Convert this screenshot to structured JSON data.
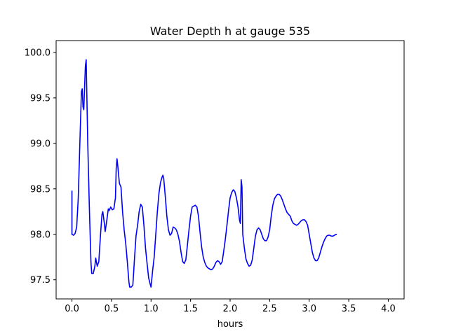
{
  "chart_data": {
    "type": "line",
    "title": "Water Depth h at gauge 535",
    "xlabel": "hours",
    "ylabel": "",
    "xlim": [
      -0.2,
      4.2
    ],
    "ylim": [
      97.29,
      100.13
    ],
    "xticks": [
      0.0,
      0.5,
      1.0,
      1.5,
      2.0,
      2.5,
      3.0,
      3.5,
      4.0
    ],
    "xtick_labels": [
      "0.0",
      "0.5",
      "1.0",
      "1.5",
      "2.0",
      "2.5",
      "3.0",
      "3.5",
      "4.0"
    ],
    "yticks": [
      97.5,
      98.0,
      98.5,
      99.0,
      99.5,
      100.0
    ],
    "ytick_labels": [
      "97.5",
      "98.0",
      "98.5",
      "99.0",
      "99.5",
      "100.0"
    ],
    "grid": false,
    "series": [
      {
        "color": "#0000ff",
        "points": [
          [
            0.0,
            98.48
          ],
          [
            0.0,
            98.0
          ],
          [
            0.02,
            97.99
          ],
          [
            0.04,
            98.01
          ],
          [
            0.06,
            98.08
          ],
          [
            0.08,
            98.4
          ],
          [
            0.1,
            99.0
          ],
          [
            0.12,
            99.57
          ],
          [
            0.13,
            99.6
          ],
          [
            0.14,
            99.4
          ],
          [
            0.15,
            99.37
          ],
          [
            0.16,
            99.62
          ],
          [
            0.17,
            99.85
          ],
          [
            0.18,
            99.92
          ],
          [
            0.2,
            99.0
          ],
          [
            0.22,
            98.3
          ],
          [
            0.24,
            97.7
          ],
          [
            0.25,
            97.57
          ],
          [
            0.27,
            97.57
          ],
          [
            0.29,
            97.65
          ],
          [
            0.3,
            97.74
          ],
          [
            0.32,
            97.65
          ],
          [
            0.34,
            97.7
          ],
          [
            0.36,
            97.98
          ],
          [
            0.38,
            98.22
          ],
          [
            0.39,
            98.25
          ],
          [
            0.41,
            98.12
          ],
          [
            0.42,
            98.03
          ],
          [
            0.44,
            98.15
          ],
          [
            0.46,
            98.28
          ],
          [
            0.47,
            98.26
          ],
          [
            0.49,
            98.3
          ],
          [
            0.51,
            98.27
          ],
          [
            0.53,
            98.28
          ],
          [
            0.55,
            98.4
          ],
          [
            0.56,
            98.73
          ],
          [
            0.57,
            98.83
          ],
          [
            0.58,
            98.75
          ],
          [
            0.6,
            98.56
          ],
          [
            0.62,
            98.52
          ],
          [
            0.64,
            98.25
          ],
          [
            0.66,
            98.05
          ],
          [
            0.68,
            97.9
          ],
          [
            0.7,
            97.7
          ],
          [
            0.72,
            97.48
          ],
          [
            0.73,
            97.42
          ],
          [
            0.75,
            97.42
          ],
          [
            0.77,
            97.44
          ],
          [
            0.79,
            97.72
          ],
          [
            0.81,
            97.98
          ],
          [
            0.83,
            98.1
          ],
          [
            0.85,
            98.25
          ],
          [
            0.87,
            98.33
          ],
          [
            0.89,
            98.3
          ],
          [
            0.91,
            98.1
          ],
          [
            0.93,
            97.85
          ],
          [
            0.95,
            97.68
          ],
          [
            0.97,
            97.52
          ],
          [
            0.99,
            97.45
          ],
          [
            1.0,
            97.42
          ],
          [
            1.02,
            97.6
          ],
          [
            1.04,
            97.75
          ],
          [
            1.06,
            98.0
          ],
          [
            1.08,
            98.25
          ],
          [
            1.1,
            98.45
          ],
          [
            1.12,
            98.57
          ],
          [
            1.14,
            98.63
          ],
          [
            1.15,
            98.65
          ],
          [
            1.16,
            98.62
          ],
          [
            1.18,
            98.42
          ],
          [
            1.2,
            98.2
          ],
          [
            1.22,
            98.05
          ],
          [
            1.24,
            97.99
          ],
          [
            1.26,
            98.01
          ],
          [
            1.28,
            98.08
          ],
          [
            1.3,
            98.07
          ],
          [
            1.32,
            98.05
          ],
          [
            1.34,
            98.0
          ],
          [
            1.36,
            97.92
          ],
          [
            1.38,
            97.8
          ],
          [
            1.4,
            97.7
          ],
          [
            1.42,
            97.68
          ],
          [
            1.44,
            97.72
          ],
          [
            1.46,
            97.88
          ],
          [
            1.48,
            98.05
          ],
          [
            1.5,
            98.2
          ],
          [
            1.52,
            98.3
          ],
          [
            1.54,
            98.31
          ],
          [
            1.56,
            98.32
          ],
          [
            1.58,
            98.3
          ],
          [
            1.6,
            98.2
          ],
          [
            1.62,
            98.02
          ],
          [
            1.64,
            97.86
          ],
          [
            1.66,
            97.75
          ],
          [
            1.68,
            97.69
          ],
          [
            1.7,
            97.65
          ],
          [
            1.72,
            97.63
          ],
          [
            1.74,
            97.62
          ],
          [
            1.76,
            97.61
          ],
          [
            1.78,
            97.62
          ],
          [
            1.8,
            97.65
          ],
          [
            1.82,
            97.69
          ],
          [
            1.84,
            97.71
          ],
          [
            1.86,
            97.7
          ],
          [
            1.88,
            97.67
          ],
          [
            1.9,
            97.7
          ],
          [
            1.92,
            97.82
          ],
          [
            1.94,
            97.95
          ],
          [
            1.96,
            98.1
          ],
          [
            1.98,
            98.26
          ],
          [
            2.0,
            98.4
          ],
          [
            2.02,
            98.46
          ],
          [
            2.04,
            98.49
          ],
          [
            2.06,
            98.47
          ],
          [
            2.08,
            98.4
          ],
          [
            2.1,
            98.3
          ],
          [
            2.12,
            98.15
          ],
          [
            2.13,
            98.12
          ],
          [
            2.14,
            98.6
          ],
          [
            2.15,
            98.52
          ],
          [
            2.16,
            98.0
          ],
          [
            2.18,
            97.85
          ],
          [
            2.2,
            97.73
          ],
          [
            2.22,
            97.68
          ],
          [
            2.24,
            97.65
          ],
          [
            2.26,
            97.66
          ],
          [
            2.28,
            97.72
          ],
          [
            2.3,
            97.85
          ],
          [
            2.32,
            97.98
          ],
          [
            2.34,
            98.05
          ],
          [
            2.36,
            98.07
          ],
          [
            2.38,
            98.05
          ],
          [
            2.4,
            98.0
          ],
          [
            2.42,
            97.95
          ],
          [
            2.44,
            97.93
          ],
          [
            2.46,
            97.93
          ],
          [
            2.48,
            97.97
          ],
          [
            2.5,
            98.05
          ],
          [
            2.52,
            98.2
          ],
          [
            2.54,
            98.32
          ],
          [
            2.56,
            98.39
          ],
          [
            2.58,
            98.42
          ],
          [
            2.6,
            98.44
          ],
          [
            2.62,
            98.44
          ],
          [
            2.64,
            98.42
          ],
          [
            2.66,
            98.38
          ],
          [
            2.68,
            98.33
          ],
          [
            2.7,
            98.28
          ],
          [
            2.72,
            98.24
          ],
          [
            2.74,
            98.22
          ],
          [
            2.76,
            98.2
          ],
          [
            2.78,
            98.15
          ],
          [
            2.8,
            98.12
          ],
          [
            2.82,
            98.11
          ],
          [
            2.84,
            98.1
          ],
          [
            2.86,
            98.11
          ],
          [
            2.88,
            98.13
          ],
          [
            2.9,
            98.15
          ],
          [
            2.92,
            98.16
          ],
          [
            2.94,
            98.16
          ],
          [
            2.96,
            98.14
          ],
          [
            2.98,
            98.1
          ],
          [
            3.0,
            98.0
          ],
          [
            3.02,
            97.9
          ],
          [
            3.04,
            97.8
          ],
          [
            3.06,
            97.74
          ],
          [
            3.08,
            97.71
          ],
          [
            3.1,
            97.71
          ],
          [
            3.12,
            97.74
          ],
          [
            3.14,
            97.8
          ],
          [
            3.16,
            97.86
          ],
          [
            3.18,
            97.91
          ],
          [
            3.2,
            97.95
          ],
          [
            3.22,
            97.98
          ],
          [
            3.24,
            97.99
          ],
          [
            3.26,
            97.99
          ],
          [
            3.28,
            97.98
          ],
          [
            3.3,
            97.98
          ],
          [
            3.32,
            97.99
          ],
          [
            3.34,
            98.0
          ],
          [
            3.35,
            98.0
          ]
        ]
      }
    ]
  }
}
